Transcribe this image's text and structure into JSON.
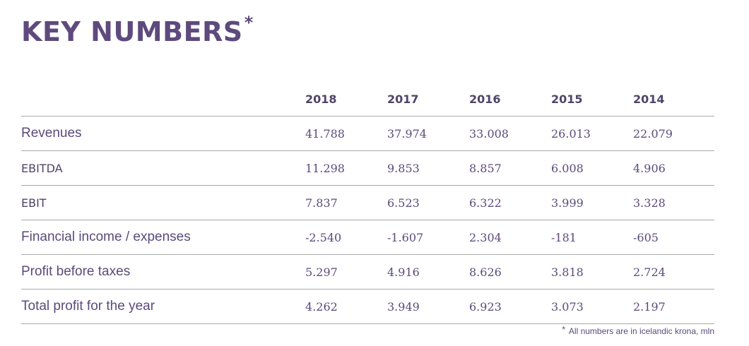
{
  "title": {
    "text": "KEY NUMBERS",
    "marker": "*"
  },
  "table": {
    "columns": [
      "2018",
      "2017",
      "2016",
      "2015",
      "2014"
    ],
    "rows": [
      {
        "label": "Revenues",
        "values": [
          "41.788",
          "37.974",
          "33.008",
          "26.013",
          "22.079"
        ]
      },
      {
        "label": "EBITDA",
        "values": [
          "11.298",
          "9.853",
          "8.857",
          "6.008",
          "4.906"
        ]
      },
      {
        "label": "EBIT",
        "values": [
          "7.837",
          "6.523",
          "6.322",
          "3.999",
          "3.328"
        ]
      },
      {
        "label": "Financial income / expenses",
        "values": [
          "-2.540",
          "-1.607",
          "2.304",
          "-181",
          "-605"
        ]
      },
      {
        "label": "Profit before taxes",
        "values": [
          "5.297",
          "4.916",
          "8.626",
          "3.818",
          "2.724"
        ]
      },
      {
        "label": "Total profit for the year",
        "values": [
          "4.262",
          "3.949",
          "6.923",
          "3.073",
          "2.197"
        ]
      }
    ]
  },
  "footnote": {
    "marker": "*",
    "text": "All numbers are in icelandic krona, mln"
  }
}
